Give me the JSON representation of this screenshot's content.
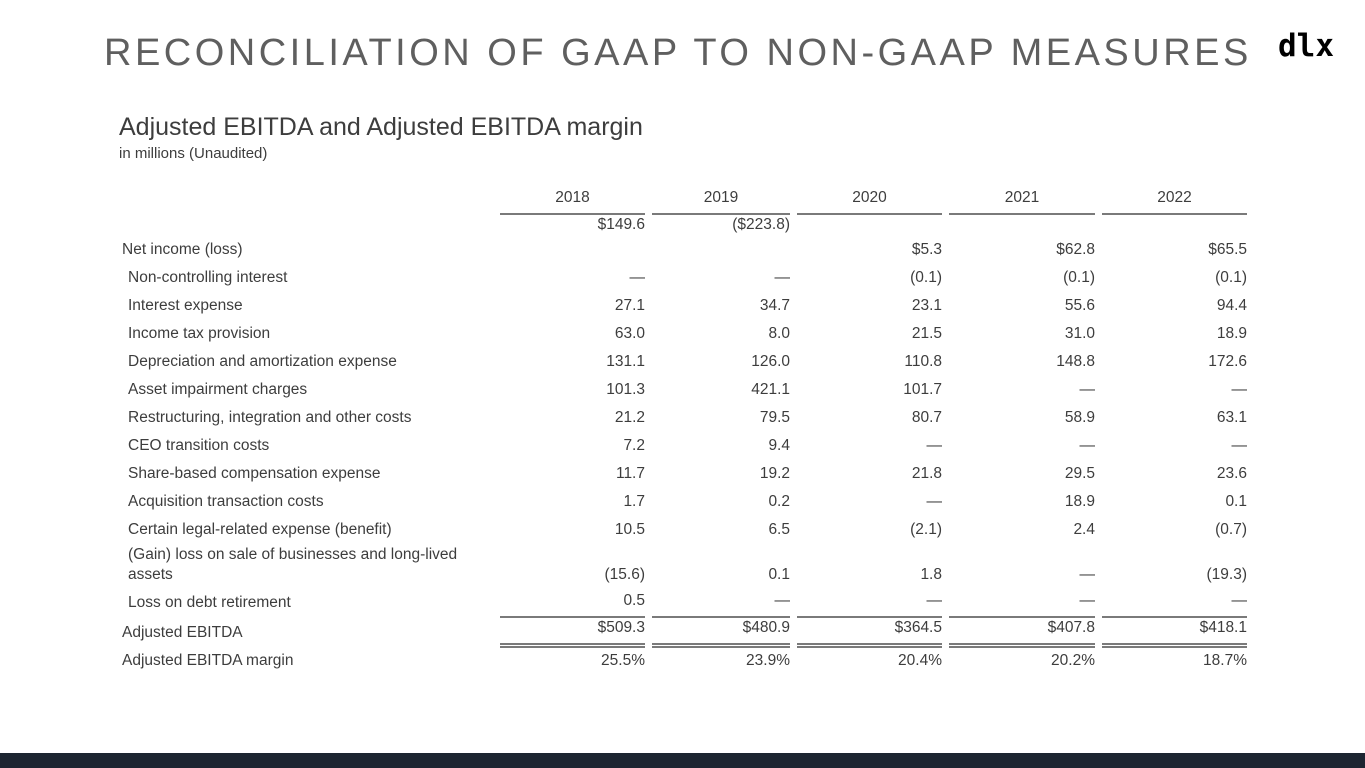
{
  "slide": {
    "title": "RECONCILIATION OF GAAP TO NON-GAAP MEASURES",
    "logo_text": "dlx",
    "heading": "Adjusted EBITDA and Adjusted EBITDA margin",
    "subheading": "in millions (Unaudited)"
  },
  "table": {
    "years": [
      "2018",
      "2019",
      "2020",
      "2021",
      "2022"
    ],
    "offset_value_row": [
      "$149.6",
      "($223.8)",
      "",
      "",
      ""
    ],
    "rows": [
      {
        "label": "Net income (loss)",
        "indent": false,
        "rule": "",
        "values": [
          "",
          "",
          "$5.3",
          "$62.8",
          "$65.5"
        ]
      },
      {
        "label": "Non-controlling interest",
        "indent": true,
        "rule": "",
        "values": [
          "—",
          "—",
          "(0.1)",
          "(0.1)",
          "(0.1)"
        ]
      },
      {
        "label": "Interest expense",
        "indent": true,
        "rule": "",
        "values": [
          "27.1",
          "34.7",
          "23.1",
          "55.6",
          "94.4"
        ]
      },
      {
        "label": "Income tax provision",
        "indent": true,
        "rule": "",
        "values": [
          "63.0",
          "8.0",
          "21.5",
          "31.0",
          "18.9"
        ]
      },
      {
        "label": "Depreciation and amortization expense",
        "indent": true,
        "rule": "",
        "values": [
          "131.1",
          "126.0",
          "110.8",
          "148.8",
          "172.6"
        ]
      },
      {
        "label": "Asset impairment charges",
        "indent": true,
        "rule": "",
        "values": [
          "101.3",
          "421.1",
          "101.7",
          "—",
          "—"
        ]
      },
      {
        "label": "Restructuring, integration and other costs",
        "indent": true,
        "rule": "",
        "values": [
          "21.2",
          "79.5",
          "80.7",
          "58.9",
          "63.1"
        ]
      },
      {
        "label": "CEO transition costs",
        "indent": true,
        "rule": "",
        "values": [
          "7.2",
          "9.4",
          "—",
          "—",
          "—"
        ]
      },
      {
        "label": "Share-based compensation expense",
        "indent": true,
        "rule": "",
        "values": [
          "11.7",
          "19.2",
          "21.8",
          "29.5",
          "23.6"
        ]
      },
      {
        "label": "Acquisition transaction costs",
        "indent": true,
        "rule": "",
        "values": [
          "1.7",
          "0.2",
          "—",
          "18.9",
          "0.1"
        ]
      },
      {
        "label": "Certain legal-related expense (benefit)",
        "indent": true,
        "rule": "",
        "values": [
          "10.5",
          "6.5",
          "(2.1)",
          "2.4",
          "(0.7)"
        ]
      },
      {
        "label": "(Gain) loss on sale of businesses and long-lived assets",
        "indent": true,
        "rule": "",
        "values": [
          "(15.6)",
          "0.1",
          "1.8",
          "—",
          "(19.3)"
        ]
      },
      {
        "label": "Loss on debt retirement",
        "indent": true,
        "rule": "bottom",
        "values": [
          "0.5",
          "—",
          "—",
          "—",
          "—"
        ]
      },
      {
        "label": "Adjusted EBITDA",
        "indent": false,
        "rule": "double",
        "values": [
          "$509.3",
          "$480.9",
          "$364.5",
          "$407.8",
          "$418.1"
        ]
      },
      {
        "label": "Adjusted EBITDA margin",
        "indent": false,
        "rule": "",
        "values": [
          "25.5%",
          "23.9%",
          "20.4%",
          "20.2%",
          "18.7%"
        ]
      }
    ]
  },
  "colors": {
    "background": "#ffffff",
    "title_text": "#5f5f5f",
    "body_text": "#3d3d3d",
    "rule_gray": "#7a7a7a",
    "logo_black": "#000000",
    "footer_bar": "#1d2531"
  }
}
